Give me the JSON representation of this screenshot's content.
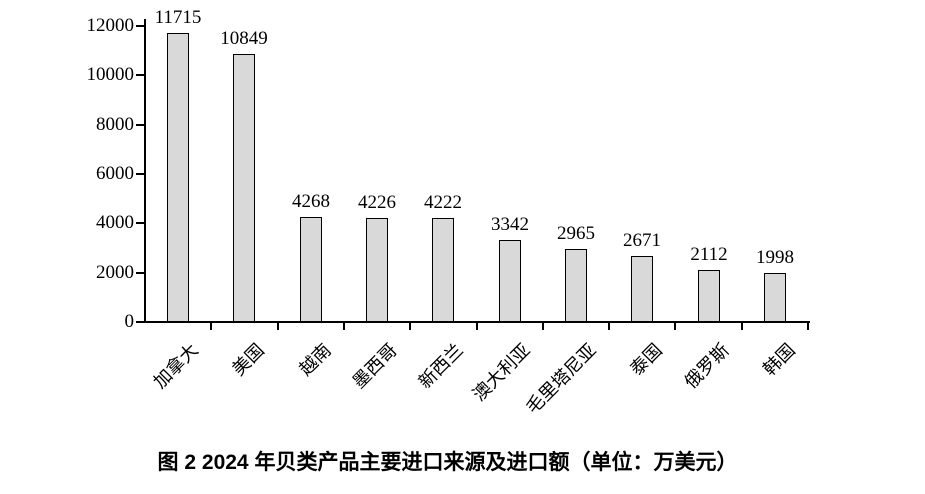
{
  "page": {
    "background": "#ffffff"
  },
  "caption": "图 2  2024 年贝类产品主要进口来源及进口额（单位：万美元）",
  "chart_data": {
    "type": "bar",
    "title": "图 2  2024 年贝类产品主要进口来源及进口额（单位：万美元）",
    "categories": [
      "加拿大",
      "美国",
      "越南",
      "墨西哥",
      "新西兰",
      "澳大利亚",
      "毛里塔尼亚",
      "泰国",
      "俄罗斯",
      "韩国"
    ],
    "values": [
      11715,
      10849,
      4268,
      4226,
      4222,
      3342,
      2965,
      2671,
      2112,
      1998
    ],
    "data_labels": [
      "11715",
      "10849",
      "4268",
      "4226",
      "4222",
      "3342",
      "2965",
      "2671",
      "2112",
      "1998"
    ],
    "xlabel": "",
    "ylabel": "",
    "ylim": [
      0,
      12000
    ],
    "yticks": [
      0,
      2000,
      4000,
      6000,
      8000,
      10000,
      12000
    ],
    "ytick_labels": [
      "0",
      "2000",
      "4000",
      "6000",
      "8000",
      "10000",
      "12000"
    ],
    "grid": false,
    "legend": null,
    "category_label_rotation_deg": 45,
    "colors": {
      "bar_fill": "#d9d9d9",
      "bar_border": "#000000",
      "axis": "#000000",
      "text": "#000000"
    }
  }
}
